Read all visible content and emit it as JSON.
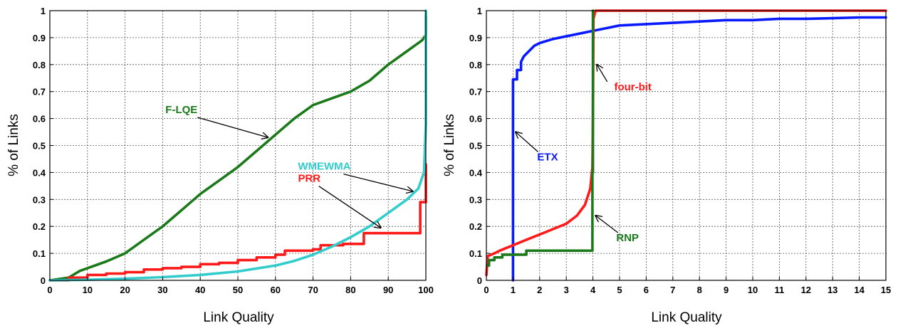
{
  "chart_data": [
    {
      "type": "line",
      "title": "",
      "xlabel": "Link Quality",
      "ylabel": "% of Links",
      "xlim": [
        0,
        100
      ],
      "ylim": [
        0,
        1
      ],
      "x_ticks": [
        0,
        10,
        20,
        30,
        40,
        50,
        60,
        70,
        80,
        90,
        100
      ],
      "y_ticks": [
        0,
        0.1,
        0.2,
        0.3,
        0.4,
        0.5,
        0.6,
        0.7,
        0.8,
        0.9,
        1
      ],
      "y_tick_labels": [
        "0",
        "0.1",
        "0.2",
        "0.3",
        "0.4",
        "0.5",
        "0.6",
        "0.7",
        "0.8",
        "0.9",
        "1"
      ],
      "grid": true,
      "series": [
        {
          "name": "F-LQE",
          "color": "#1a7a1a",
          "step": false,
          "points": [
            [
              0,
              0
            ],
            [
              5,
              0.01
            ],
            [
              8,
              0.035
            ],
            [
              10,
              0.045
            ],
            [
              15,
              0.07
            ],
            [
              20,
              0.1
            ],
            [
              25,
              0.15
            ],
            [
              30,
              0.2
            ],
            [
              35,
              0.26
            ],
            [
              40,
              0.32
            ],
            [
              45,
              0.37
            ],
            [
              50,
              0.42
            ],
            [
              55,
              0.48
            ],
            [
              60,
              0.54
            ],
            [
              65,
              0.6
            ],
            [
              70,
              0.65
            ],
            [
              75,
              0.675
            ],
            [
              80,
              0.7
            ],
            [
              85,
              0.74
            ],
            [
              90,
              0.8
            ],
            [
              95,
              0.85
            ],
            [
              99,
              0.89
            ],
            [
              100,
              0.91
            ],
            [
              100,
              0.98
            ]
          ]
        },
        {
          "name": "PRR",
          "color": "#ff1a1a",
          "step": true,
          "points": [
            [
              0,
              0
            ],
            [
              5,
              0.01
            ],
            [
              10,
              0.02
            ],
            [
              15,
              0.025
            ],
            [
              20,
              0.03
            ],
            [
              25,
              0.04
            ],
            [
              30,
              0.045
            ],
            [
              35,
              0.05
            ],
            [
              40,
              0.06
            ],
            [
              45,
              0.065
            ],
            [
              50,
              0.075
            ],
            [
              55,
              0.085
            ],
            [
              60,
              0.095
            ],
            [
              62.5,
              0.11
            ],
            [
              70,
              0.115
            ],
            [
              72,
              0.13
            ],
            [
              78,
              0.135
            ],
            [
              83.5,
              0.175
            ],
            [
              90,
              0.175
            ],
            [
              98.5,
              0.175
            ],
            [
              98.5,
              0.29
            ],
            [
              100,
              0.43
            ]
          ]
        },
        {
          "name": "WMEWMA",
          "color": "#33cccc",
          "step": false,
          "points": [
            [
              0,
              0
            ],
            [
              10,
              0.002
            ],
            [
              20,
              0.006
            ],
            [
              30,
              0.012
            ],
            [
              40,
              0.02
            ],
            [
              50,
              0.033
            ],
            [
              60,
              0.055
            ],
            [
              65,
              0.072
            ],
            [
              70,
              0.095
            ],
            [
              75,
              0.125
            ],
            [
              80,
              0.16
            ],
            [
              85,
              0.2
            ],
            [
              90,
              0.25
            ],
            [
              95,
              0.3
            ],
            [
              98,
              0.34
            ],
            [
              99.5,
              0.4
            ],
            [
              100,
              0.58
            ],
            [
              100,
              1
            ]
          ]
        }
      ],
      "annotations": [
        {
          "text": "F-LQE",
          "color": "#1a7a1a",
          "x": 35,
          "y": 0.62,
          "arrow_to": [
            58,
            0.53
          ]
        },
        {
          "text": "WMEWMA",
          "color": "#33cccc",
          "x": 73,
          "y": 0.41,
          "arrow_to": [
            96.5,
            0.33
          ]
        },
        {
          "text": "PRR",
          "color": "#ff1a1a",
          "x": 69,
          "y": 0.365,
          "arrow_to": [
            88,
            0.195
          ]
        }
      ]
    },
    {
      "type": "line",
      "title": "",
      "xlabel": "Link Quality",
      "ylabel": "% of Links",
      "xlim": [
        0,
        15
      ],
      "ylim": [
        0,
        1
      ],
      "x_ticks": [
        0,
        1,
        2,
        3,
        4,
        5,
        6,
        7,
        8,
        9,
        10,
        11,
        12,
        13,
        14,
        15
      ],
      "y_ticks": [
        0,
        0.1,
        0.2,
        0.3,
        0.4,
        0.5,
        0.6,
        0.7,
        0.8,
        0.9,
        1
      ],
      "y_tick_labels": [
        "0",
        "0.1",
        "0.2",
        "0.3",
        "0.4",
        "0.5",
        "0.6",
        "0.7",
        "0.8",
        "0.9",
        "1"
      ],
      "grid": true,
      "series": [
        {
          "name": "ETX",
          "color": "#0a1aff",
          "step": false,
          "points": [
            [
              1,
              0
            ],
            [
              1,
              0.745
            ],
            [
              1.15,
              0.745
            ],
            [
              1.15,
              0.78
            ],
            [
              1.3,
              0.78
            ],
            [
              1.3,
              0.81
            ],
            [
              1.4,
              0.83
            ],
            [
              1.5,
              0.84
            ],
            [
              1.6,
              0.85
            ],
            [
              1.8,
              0.87
            ],
            [
              2,
              0.88
            ],
            [
              2.5,
              0.895
            ],
            [
              3,
              0.905
            ],
            [
              3.5,
              0.915
            ],
            [
              4,
              0.925
            ],
            [
              4.5,
              0.935
            ],
            [
              5,
              0.945
            ],
            [
              6,
              0.95
            ],
            [
              7,
              0.955
            ],
            [
              8,
              0.96
            ],
            [
              9,
              0.965
            ],
            [
              10,
              0.965
            ],
            [
              11,
              0.97
            ],
            [
              12,
              0.97
            ],
            [
              13,
              0.972
            ],
            [
              14,
              0.975
            ],
            [
              15,
              0.975
            ]
          ]
        },
        {
          "name": "four-bit",
          "color": "#ff1a1a",
          "step": false,
          "points": [
            [
              0,
              0.02
            ],
            [
              0.05,
              0.09
            ],
            [
              0.3,
              0.1
            ],
            [
              0.5,
              0.11
            ],
            [
              1,
              0.13
            ],
            [
              1.5,
              0.15
            ],
            [
              2,
              0.17
            ],
            [
              2.5,
              0.19
            ],
            [
              3,
              0.21
            ],
            [
              3.4,
              0.24
            ],
            [
              3.7,
              0.28
            ],
            [
              3.9,
              0.34
            ],
            [
              3.98,
              0.42
            ],
            [
              4,
              0.6
            ],
            [
              4.02,
              0.97
            ],
            [
              4.1,
              1
            ],
            [
              15,
              1
            ]
          ]
        },
        {
          "name": "RNP",
          "color": "#1a7a1a",
          "step": true,
          "points": [
            [
              0.05,
              0.055
            ],
            [
              0.1,
              0.075
            ],
            [
              0.3,
              0.075
            ],
            [
              0.3,
              0.085
            ],
            [
              0.6,
              0.085
            ],
            [
              0.6,
              0.095
            ],
            [
              1.5,
              0.095
            ],
            [
              1.5,
              0.11
            ],
            [
              3.98,
              0.11
            ],
            [
              3.98,
              0.4
            ],
            [
              4,
              1
            ]
          ]
        }
      ],
      "annotations": [
        {
          "text": "four-bit",
          "color": "#ff1a1a",
          "x": 5.5,
          "y": 0.705,
          "arrow_to": [
            4.15,
            0.8
          ]
        },
        {
          "text": "ETX",
          "color": "#0a1aff",
          "x": 2.3,
          "y": 0.445,
          "arrow_to": [
            1.1,
            0.55
          ]
        },
        {
          "text": "RNP",
          "color": "#1a7a1a",
          "x": 5.3,
          "y": 0.145,
          "arrow_to": [
            4.1,
            0.24
          ]
        }
      ]
    }
  ]
}
